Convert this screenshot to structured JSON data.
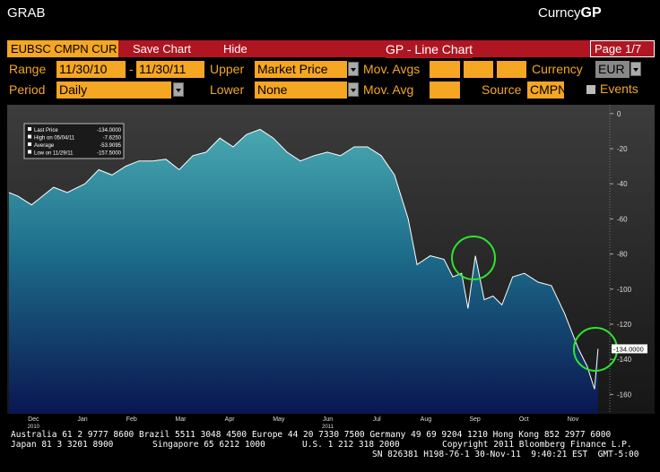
{
  "header": {
    "left": "GRAB",
    "right_prefix": "Curncy",
    "right_suffix": "GP"
  },
  "toolbar": {
    "ticker": "EUBSC CMPN CUR",
    "save": "Save Chart",
    "hide": "Hide",
    "title": "GP - Line Chart",
    "page": "Page 1/7"
  },
  "row1": {
    "range_label": "Range",
    "start": "11/30/10",
    "dash": "-",
    "end": "11/30/11",
    "upper_label": "Upper",
    "upper": "Market Price",
    "mov_avgs_label": "Mov. Avgs",
    "currency_label": "Currency",
    "currency": "EUR"
  },
  "row2": {
    "period_label": "Period",
    "period": "Daily",
    "lower_label": "Lower",
    "lower": "None",
    "mov_avg_label": "Mov. Avg",
    "source_label": "Source",
    "source": "CMPN",
    "events_label": "Events"
  },
  "chart_data": {
    "type": "line",
    "color": "#ffffff",
    "x": [
      0,
      0.18,
      0.46,
      0.64,
      0.91,
      1.19,
      1.55,
      1.83,
      2.1,
      2.38,
      2.65,
      2.93,
      3.2,
      3.47,
      3.75,
      4.02,
      4.3,
      4.57,
      4.84,
      5.12,
      5.39,
      5.67,
      5.94,
      6.22,
      6.49,
      6.76,
      7.04,
      7.31,
      7.59,
      7.86,
      8.14,
      8.32,
      8.59,
      8.87,
      9.05,
      9.23,
      9.36,
      9.51,
      9.69,
      9.87,
      10.05,
      10.27,
      10.51,
      10.79,
      11.06,
      11.33,
      11.61,
      11.79,
      11.94,
      12.01
    ],
    "values": [
      -45,
      -47,
      -52,
      -48,
      -42,
      -45,
      -40,
      -32,
      -35,
      -30,
      -27,
      -27,
      -26,
      -32,
      -24,
      -22,
      -14,
      -19,
      -12,
      -9,
      -14,
      -22,
      -27,
      -24,
      -22,
      -24,
      -19,
      -19,
      -24,
      -35,
      -60,
      -86,
      -81,
      -83,
      -93,
      -91,
      -111,
      -81,
      -106,
      -104,
      -109,
      -93,
      -91,
      -96,
      -98,
      -114,
      -134,
      -144,
      -157,
      -134
    ],
    "xlim": [
      0,
      12.25
    ],
    "xticks": [
      {
        "value": 0.5,
        "label": "Dec"
      },
      {
        "value": 1.5,
        "label": "Jan"
      },
      {
        "value": 2.5,
        "label": "Feb"
      },
      {
        "value": 3.5,
        "label": "Mar"
      },
      {
        "value": 4.5,
        "label": "Apr"
      },
      {
        "value": 5.5,
        "label": "May"
      },
      {
        "value": 6.5,
        "label": "Jun"
      },
      {
        "value": 7.5,
        "label": "Jul"
      },
      {
        "value": 8.5,
        "label": "Aug"
      },
      {
        "value": 9.5,
        "label": "Sep"
      },
      {
        "value": 10.5,
        "label": "Oct"
      },
      {
        "value": 11.5,
        "label": "Nov"
      }
    ],
    "year_labels": [
      {
        "value": 0.5,
        "label": "2010"
      },
      {
        "value": 6.5,
        "label": "2011"
      }
    ],
    "ylim": [
      -170,
      5
    ],
    "yticks": [
      0,
      -20,
      -40,
      -60,
      -80,
      -100,
      -120,
      -140,
      -160
    ],
    "stats": [
      {
        "label": "Last Price",
        "value": -134,
        "value_label": "-134.0000"
      },
      {
        "label": "High on 05/04/11",
        "value": -7.625,
        "value_label": "-7.6250"
      },
      {
        "label": "Average",
        "value": -53.9095,
        "value_label": "-53.9095"
      },
      {
        "label": "Low on 11/29/11",
        "value": -157.5,
        "value_label": "-157.5000"
      }
    ]
  },
  "footer": {
    "line1": "Australia 61 2 9777 8600 Brazil 5511 3048 4500 Europe 44 20 7330 7500 Germany 49 69 9204 1210 Hong Kong 852 2977 6000",
    "line2": [
      "Japan 81 3 3201 8900",
      "Singapore 65 6212 1000",
      "U.S. 1 212 318 2000",
      "Copyright 2011 Bloomberg Finance L.P."
    ],
    "line3": "SN 826381 H198-76-1 30-Nov-11  9:40:21 EST  GMT-5:00"
  }
}
